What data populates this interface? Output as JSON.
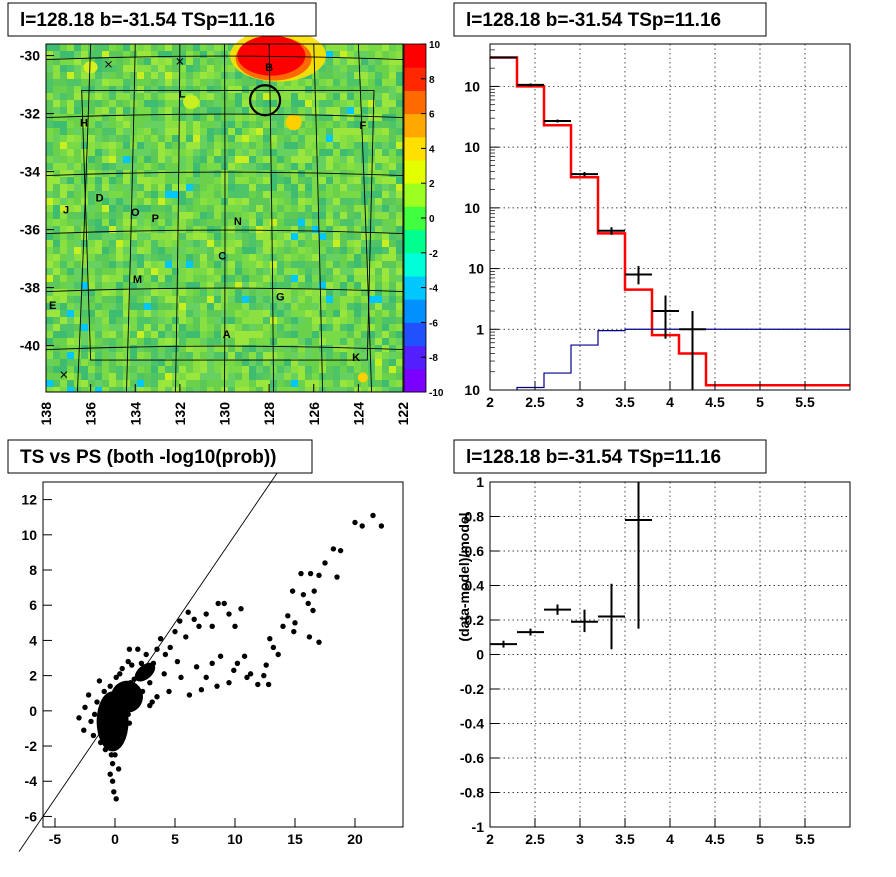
{
  "panels": {
    "map_title": "l=128.18 b=-31.54 TSp=11.16",
    "spectrum_title": "l=128.18 b=-31.54 TSp=11.16",
    "scatter_title": "TS vs PS (both -log10(prob))",
    "residual_title": "l=128.18 b=-31.54 TSp=11.16"
  },
  "chart_data": [
    {
      "type": "heatmap",
      "title": "l=128.18 b=-31.54 TSp=11.16",
      "x_ticks": [
        "138",
        "136",
        "134",
        "132",
        "130",
        "128",
        "126",
        "124",
        "122"
      ],
      "xlim": [
        138,
        122
      ],
      "y_ticks": [
        "-30",
        "-32",
        "-34",
        "-36",
        "-38",
        "-40"
      ],
      "ylim": [
        -41.6,
        -29.6
      ],
      "colorbar": {
        "ticks": [
          "10",
          "8",
          "6",
          "4",
          "2",
          "0",
          "-2",
          "-4",
          "-6",
          "-8",
          "-10"
        ],
        "range": [
          -10,
          10
        ],
        "colors": [
          "#7a00ff",
          "#5520ff",
          "#2050ff",
          "#0090ff",
          "#00c8ff",
          "#00ffd8",
          "#00ff8c",
          "#40ff40",
          "#9cff20",
          "#e4ff00",
          "#ffe000",
          "#ffa800",
          "#ff6a00",
          "#ff2800",
          "#ff0000"
        ]
      },
      "labels": [
        {
          "text": "B",
          "l": 128,
          "b": -30.4
        },
        {
          "text": "L",
          "l": 131.9,
          "b": -31.3
        },
        {
          "text": "H",
          "l": 136.3,
          "b": -32.3
        },
        {
          "text": "F",
          "l": 123.8,
          "b": -32.4
        },
        {
          "text": "D",
          "l": 135.6,
          "b": -34.9
        },
        {
          "text": "J",
          "l": 137.1,
          "b": -35.3
        },
        {
          "text": "O",
          "l": 134,
          "b": -35.4
        },
        {
          "text": "P",
          "l": 133.1,
          "b": -35.6
        },
        {
          "text": "N",
          "l": 129.4,
          "b": -35.7
        },
        {
          "text": "C",
          "l": 130.1,
          "b": -36.9
        },
        {
          "text": "M",
          "l": 133.9,
          "b": -37.7
        },
        {
          "text": "G",
          "l": 127.5,
          "b": -38.3
        },
        {
          "text": "E",
          "l": 137.7,
          "b": -38.6
        },
        {
          "text": "A",
          "l": 129.9,
          "b": -39.6
        },
        {
          "text": "K",
          "l": 124.1,
          "b": -40.4
        }
      ]
    },
    {
      "type": "line",
      "title": "l=128.18 b=-31.54 TSp=11.16",
      "x_ticks": [
        "2",
        "2.5",
        "3",
        "3.5",
        "4",
        "4.5",
        "5",
        "5.5"
      ],
      "xlim": [
        2,
        6
      ],
      "y_ticks": [
        "10^-1",
        "1",
        "10",
        "10^2",
        "10^3",
        "10^4"
      ],
      "ylim": [
        0.1,
        50000
      ],
      "yscale": "log",
      "grid": true,
      "series": [
        {
          "color": "#ff0000",
          "bin_edges": [
            2.0,
            2.3,
            2.6,
            2.9,
            3.2,
            3.5,
            3.8,
            4.1,
            4.4,
            6.0
          ],
          "values": [
            30000,
            10000,
            2300,
            320,
            38,
            4.5,
            0.8,
            0.4,
            0.12
          ]
        },
        {
          "color": "#00008b",
          "bin_edges": [
            2.3,
            2.6,
            2.9,
            3.2,
            3.5,
            3.8,
            4.1,
            4.4,
            6.0
          ],
          "values": [
            0.11,
            0.19,
            0.55,
            0.95,
            1.0,
            1.0,
            1.0,
            1.0
          ]
        },
        {
          "color": "#000000",
          "points": [
            {
              "x": 2.15,
              "xerr": 0.15,
              "y": 30000,
              "ylo": 29000,
              "yhi": 31000
            },
            {
              "x": 2.45,
              "xerr": 0.15,
              "y": 10600,
              "ylo": 10000,
              "yhi": 11200
            },
            {
              "x": 2.75,
              "xerr": 0.15,
              "y": 2700,
              "ylo": 2550,
              "yhi": 2850
            },
            {
              "x": 3.05,
              "xerr": 0.15,
              "y": 360,
              "ylo": 330,
              "yhi": 390
            },
            {
              "x": 3.35,
              "xerr": 0.15,
              "y": 42,
              "ylo": 36,
              "yhi": 48
            },
            {
              "x": 3.65,
              "xerr": 0.15,
              "y": 8,
              "ylo": 5.5,
              "yhi": 11
            },
            {
              "x": 3.95,
              "xerr": 0.15,
              "y": 2,
              "ylo": 0.7,
              "yhi": 3.6
            },
            {
              "x": 4.25,
              "xerr": 0.15,
              "y": 1,
              "ylo": 0.1,
              "yhi": 2
            }
          ]
        }
      ]
    },
    {
      "type": "scatter",
      "title": "TS vs PS (both -log10(prob))",
      "x_ticks": [
        "-5",
        "0",
        "5",
        "10",
        "15",
        "20"
      ],
      "xlim": [
        -6,
        24
      ],
      "y_ticks": [
        "-6",
        "-4",
        "-2",
        "0",
        "2",
        "4",
        "6",
        "8",
        "10",
        "12"
      ],
      "ylim": [
        -6.6,
        13
      ],
      "line": {
        "x0": -8,
        "y0": -8,
        "x1": 14,
        "y1": 14
      },
      "points": [
        [
          20,
          10.7
        ],
        [
          21.5,
          11.1
        ],
        [
          22.2,
          10.5
        ],
        [
          20.6,
          10.5
        ],
        [
          18.5,
          7.6
        ],
        [
          17.5,
          8.4
        ],
        [
          18.8,
          9.1
        ],
        [
          18.2,
          9.2
        ],
        [
          15.5,
          7.8
        ],
        [
          16.3,
          7.8
        ],
        [
          17,
          7.7
        ],
        [
          14.8,
          6.8
        ],
        [
          16.1,
          6.1
        ],
        [
          15.7,
          6.6
        ],
        [
          14.4,
          5.4
        ],
        [
          16.6,
          6.8
        ],
        [
          16.5,
          5.7
        ],
        [
          14,
          4.8
        ],
        [
          15,
          5
        ],
        [
          14.9,
          4.5
        ],
        [
          16.2,
          4.2
        ],
        [
          17,
          3.9
        ],
        [
          12.9,
          4.1
        ],
        [
          13.6,
          3.2
        ],
        [
          13.2,
          3.6
        ],
        [
          12.6,
          2.6
        ],
        [
          12.4,
          2
        ],
        [
          11.9,
          1.5
        ],
        [
          11.3,
          2.1
        ],
        [
          10.8,
          3.1
        ],
        [
          10.2,
          2.7
        ],
        [
          9.9,
          2.3
        ],
        [
          9.5,
          1.6
        ],
        [
          8.8,
          3.1
        ],
        [
          8.1,
          2.7
        ],
        [
          7.6,
          1.9
        ],
        [
          7.2,
          1.2
        ],
        [
          6.8,
          2.5
        ],
        [
          10.5,
          5.8
        ],
        [
          10,
          4.8
        ],
        [
          9.5,
          5.5
        ],
        [
          9.1,
          6.1
        ],
        [
          8.6,
          6.1
        ],
        [
          8.1,
          4.8
        ],
        [
          7.6,
          5.5
        ],
        [
          7,
          4.8
        ],
        [
          6.6,
          5.2
        ],
        [
          6.1,
          5.6
        ],
        [
          5.9,
          4.2
        ],
        [
          5.4,
          5.1
        ],
        [
          5,
          4.5
        ],
        [
          4.6,
          3.6
        ],
        [
          4.2,
          3.2
        ],
        [
          3.8,
          4.1
        ],
        [
          3.5,
          3.5
        ],
        [
          3.2,
          2.7
        ],
        [
          2.9,
          1.6
        ],
        [
          2.6,
          3.2
        ],
        [
          2.2,
          2.7
        ],
        [
          1.9,
          3.5
        ],
        [
          1.6,
          1.8
        ],
        [
          1.4,
          2.6
        ],
        [
          1.2,
          3.5
        ],
        [
          1.1,
          2.8
        ],
        [
          0.8,
          1.3
        ],
        [
          0.6,
          2.4
        ],
        [
          5.5,
          1.9
        ],
        [
          6.2,
          0.9
        ],
        [
          4.5,
          1.1
        ],
        [
          3.5,
          0.8
        ],
        [
          2.9,
          0.3
        ],
        [
          2.3,
          1.1
        ],
        [
          1.8,
          0.5
        ],
        [
          3.1,
          0.5
        ],
        [
          4.1,
          2.1
        ],
        [
          5.2,
          2.8
        ],
        [
          8.5,
          1.4
        ],
        [
          11,
          1.9
        ],
        [
          12.8,
          1.5
        ],
        [
          0.2,
          0.1
        ],
        [
          -0.5,
          -1.5
        ],
        [
          -1,
          -0.8
        ],
        [
          -1.5,
          0.5
        ],
        [
          -2,
          -0.6
        ],
        [
          -2.5,
          0.2
        ],
        [
          -3,
          -0.4
        ],
        [
          0.5,
          -0.6
        ],
        [
          0.8,
          0.9
        ],
        [
          1.1,
          -0.2
        ],
        [
          1.3,
          1.6
        ],
        [
          -0.2,
          -3
        ],
        [
          -0.2,
          -4
        ],
        [
          -0.1,
          -4.6
        ],
        [
          -0.4,
          -3.6
        ],
        [
          0,
          -2.5
        ],
        [
          0.3,
          -3.3
        ],
        [
          -0.8,
          -2.2
        ],
        [
          -1.8,
          -1.4
        ],
        [
          -2.6,
          -1.1
        ],
        [
          -0.9,
          1.1
        ],
        [
          -1.3,
          1.7
        ],
        [
          -0.4,
          1.4
        ],
        [
          0.1,
          1.9
        ],
        [
          0.4,
          2.1
        ],
        [
          0.1,
          -5
        ],
        [
          -0.3,
          -2.5
        ],
        [
          0.6,
          -1.1
        ],
        [
          0.9,
          0.3
        ],
        [
          1.5,
          0.8
        ],
        [
          2,
          1.9
        ],
        [
          2.5,
          2.3
        ],
        [
          1.2,
          -0.7
        ],
        [
          -1.2,
          -1.8
        ],
        [
          -1.7,
          -0.2
        ],
        [
          -2.2,
          0.9
        ],
        [
          -0.6,
          0.5
        ],
        [
          -0.1,
          0.8
        ],
        [
          0.3,
          0.3
        ],
        [
          0.7,
          -0.3
        ],
        [
          -0.3,
          -0.9
        ]
      ]
    },
    {
      "type": "line",
      "title": "l=128.18 b=-31.54 TSp=11.16",
      "ylabel": "(data-model)/model",
      "x_ticks": [
        "2",
        "2.5",
        "3",
        "3.5",
        "4",
        "4.5",
        "5",
        "5.5"
      ],
      "xlim": [
        2,
        6
      ],
      "y_ticks": [
        "-1",
        "-0.8",
        "-0.6",
        "-0.4",
        "-0.2",
        "0",
        "0.2",
        "0.4",
        "0.6",
        "0.8",
        "1"
      ],
      "ylim": [
        -1,
        1
      ],
      "grid": true,
      "points": [
        {
          "x": 2.15,
          "xerr": 0.15,
          "y": 0.06,
          "ylo": 0.04,
          "yhi": 0.08
        },
        {
          "x": 2.45,
          "xerr": 0.15,
          "y": 0.13,
          "ylo": 0.11,
          "yhi": 0.15
        },
        {
          "x": 2.75,
          "xerr": 0.15,
          "y": 0.26,
          "ylo": 0.23,
          "yhi": 0.29
        },
        {
          "x": 3.05,
          "xerr": 0.15,
          "y": 0.19,
          "ylo": 0.13,
          "yhi": 0.26
        },
        {
          "x": 3.35,
          "xerr": 0.15,
          "y": 0.22,
          "ylo": 0.03,
          "yhi": 0.41
        },
        {
          "x": 3.65,
          "xerr": 0.15,
          "y": 0.78,
          "ylo": 0.15,
          "yhi": 1.0
        }
      ]
    }
  ]
}
